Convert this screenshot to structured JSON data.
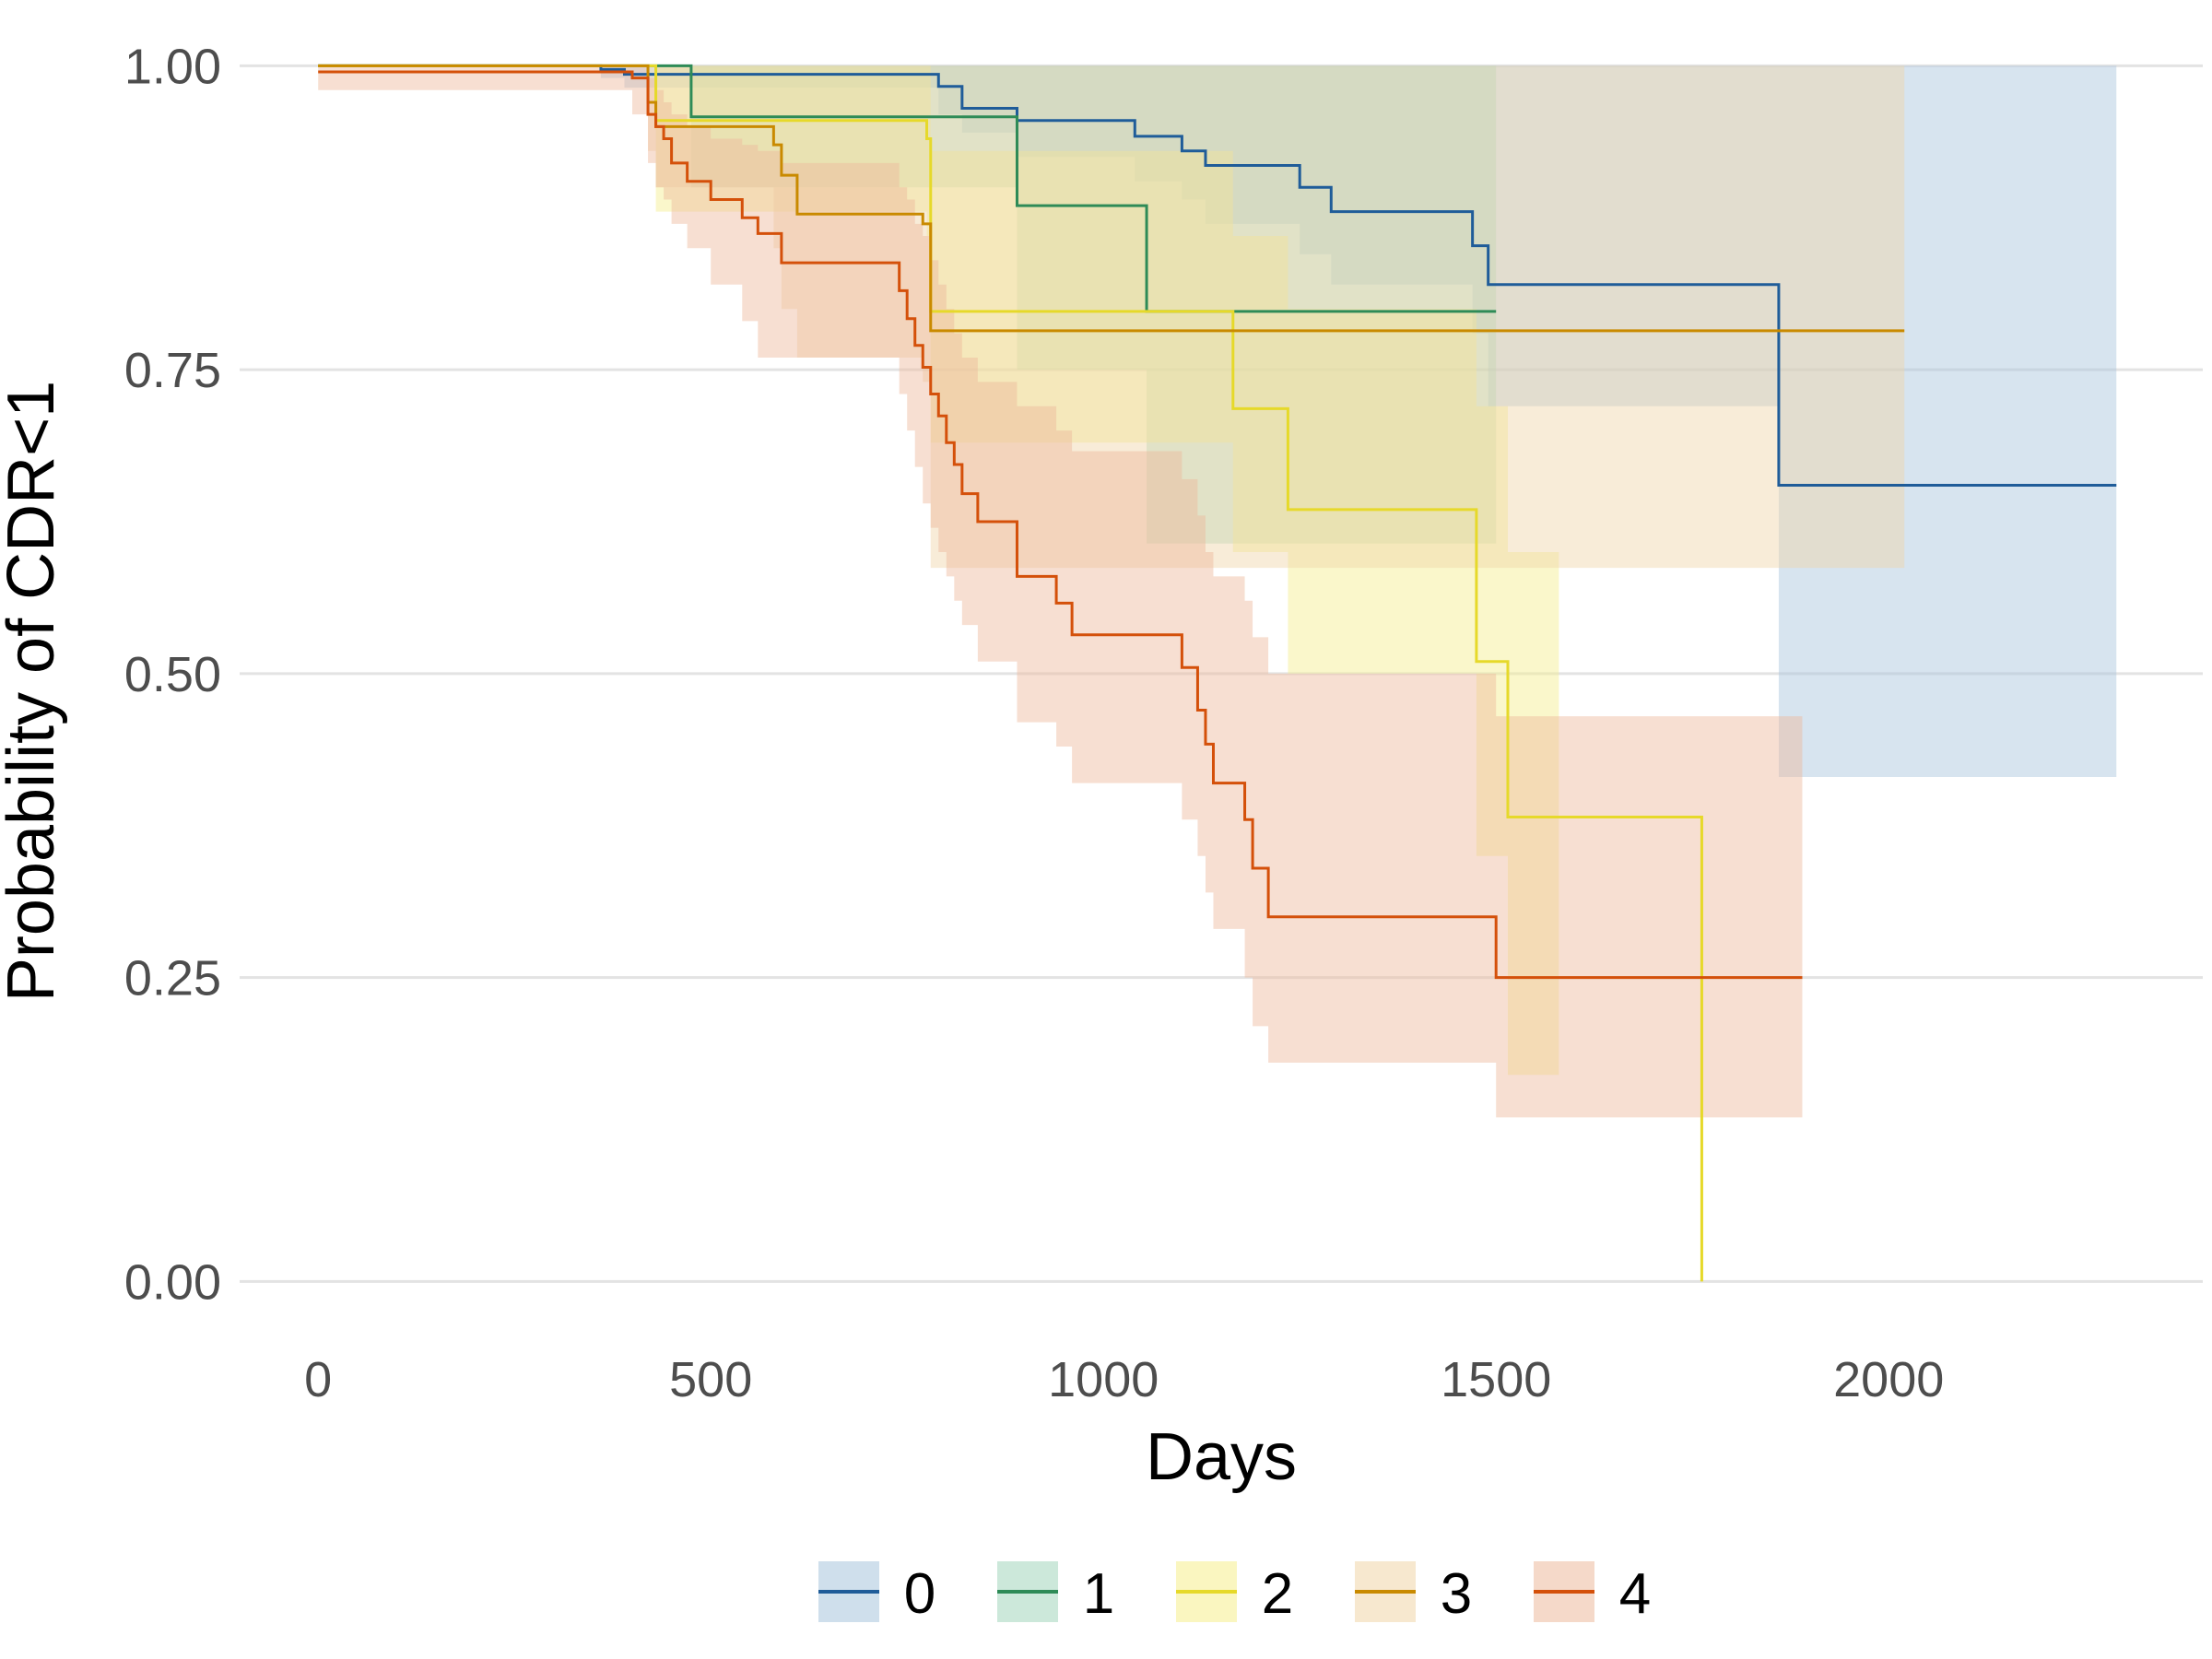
{
  "chart_data": {
    "type": "line",
    "subtype": "kaplan-meier survival curves with confidence bands",
    "title": "",
    "xlabel": "Days",
    "ylabel": "Probability of CDR<1",
    "xlim": [
      -100,
      2400
    ],
    "ylim": [
      -0.03,
      1.02
    ],
    "x_ticks": [
      0,
      500,
      1000,
      1500,
      2000
    ],
    "x_tick_labels": [
      "0",
      "500",
      "1000",
      "1500",
      "2000"
    ],
    "y_ticks": [
      0,
      0.25,
      0.5,
      0.75,
      1
    ],
    "y_tick_labels": [
      "0.00",
      "0.25",
      "0.50",
      "0.75",
      "1.00"
    ],
    "grid": "horizontal major",
    "legend_position": "bottom",
    "series": [
      {
        "name": "0",
        "color": "#1F5C99",
        "band_color": "#A7C4DC",
        "steps": [
          [
            0,
            1.0
          ],
          [
            360,
            0.997
          ],
          [
            390,
            0.993
          ],
          [
            790,
            0.983
          ],
          [
            820,
            0.965
          ],
          [
            890,
            0.955
          ],
          [
            1040,
            0.942
          ],
          [
            1100,
            0.93
          ],
          [
            1130,
            0.918
          ],
          [
            1250,
            0.9
          ],
          [
            1290,
            0.88
          ],
          [
            1470,
            0.852
          ],
          [
            1490,
            0.82
          ],
          [
            1860,
            0.655
          ],
          [
            2290,
            0.655
          ]
        ],
        "lower": [
          [
            0,
            1.0
          ],
          [
            360,
            0.99
          ],
          [
            390,
            0.982
          ],
          [
            790,
            0.96
          ],
          [
            820,
            0.945
          ],
          [
            890,
            0.925
          ],
          [
            1040,
            0.905
          ],
          [
            1100,
            0.89
          ],
          [
            1130,
            0.87
          ],
          [
            1250,
            0.845
          ],
          [
            1290,
            0.82
          ],
          [
            1470,
            0.78
          ],
          [
            1490,
            0.72
          ],
          [
            1860,
            0.415
          ],
          [
            2290,
            0.415
          ]
        ],
        "upper": [
          [
            0,
            1.0
          ],
          [
            1500,
            1.0
          ],
          [
            2290,
            1.0
          ]
        ]
      },
      {
        "name": "1",
        "color": "#2E8B57",
        "band_color": "#A3D6BC",
        "steps": [
          [
            0,
            1.0
          ],
          [
            470,
            1.0
          ],
          [
            475,
            0.958
          ],
          [
            885,
            0.958
          ],
          [
            890,
            0.885
          ],
          [
            1050,
            0.885
          ],
          [
            1055,
            0.798
          ],
          [
            1500,
            0.798
          ]
        ],
        "lower": [
          [
            0,
            1.0
          ],
          [
            470,
            1.0
          ],
          [
            475,
            0.9
          ],
          [
            885,
            0.9
          ],
          [
            890,
            0.75
          ],
          [
            1050,
            0.75
          ],
          [
            1055,
            0.607
          ],
          [
            1500,
            0.607
          ]
        ],
        "upper": [
          [
            0,
            1.0
          ],
          [
            1500,
            1.0
          ]
        ]
      },
      {
        "name": "2",
        "color": "#E6D92A",
        "band_color": "#F5EE8C",
        "steps": [
          [
            0,
            1.0
          ],
          [
            420,
            1.0
          ],
          [
            430,
            0.955
          ],
          [
            770,
            0.955
          ],
          [
            775,
            0.94
          ],
          [
            780,
            0.798
          ],
          [
            1160,
            0.798
          ],
          [
            1165,
            0.718
          ],
          [
            1230,
            0.718
          ],
          [
            1235,
            0.635
          ],
          [
            1470,
            0.635
          ],
          [
            1475,
            0.51
          ],
          [
            1510,
            0.51
          ],
          [
            1515,
            0.382
          ],
          [
            1760,
            0.382
          ],
          [
            1762,
            0.0
          ]
        ],
        "lower": [
          [
            0,
            1.0
          ],
          [
            420,
            1.0
          ],
          [
            430,
            0.88
          ],
          [
            770,
            0.88
          ],
          [
            775,
            0.86
          ],
          [
            780,
            0.69
          ],
          [
            1160,
            0.69
          ],
          [
            1165,
            0.6
          ],
          [
            1230,
            0.6
          ],
          [
            1235,
            0.5
          ],
          [
            1470,
            0.5
          ],
          [
            1475,
            0.35
          ],
          [
            1510,
            0.35
          ],
          [
            1515,
            0.17
          ],
          [
            1580,
            0.17
          ]
        ],
        "upper": [
          [
            0,
            1.0
          ],
          [
            420,
            1.0
          ],
          [
            430,
            1.0
          ],
          [
            770,
            1.0
          ],
          [
            780,
            0.93
          ],
          [
            1160,
            0.93
          ],
          [
            1165,
            0.86
          ],
          [
            1230,
            0.86
          ],
          [
            1235,
            0.8
          ],
          [
            1470,
            0.8
          ],
          [
            1475,
            0.72
          ],
          [
            1510,
            0.72
          ],
          [
            1515,
            0.6
          ],
          [
            1580,
            0.6
          ]
        ]
      },
      {
        "name": "3",
        "color": "#C98A00",
        "band_color": "#F0D5A8",
        "steps": [
          [
            0,
            1.0
          ],
          [
            415,
            1.0
          ],
          [
            420,
            0.97
          ],
          [
            430,
            0.95
          ],
          [
            580,
            0.935
          ],
          [
            590,
            0.91
          ],
          [
            610,
            0.878
          ],
          [
            760,
            0.878
          ],
          [
            770,
            0.87
          ],
          [
            780,
            0.782
          ],
          [
            2020,
            0.782
          ]
        ],
        "lower": [
          [
            0,
            1.0
          ],
          [
            415,
            1.0
          ],
          [
            420,
            0.93
          ],
          [
            430,
            0.9
          ],
          [
            580,
            0.85
          ],
          [
            590,
            0.8
          ],
          [
            610,
            0.76
          ],
          [
            760,
            0.76
          ],
          [
            770,
            0.74
          ],
          [
            780,
            0.587
          ],
          [
            2020,
            0.587
          ]
        ],
        "upper": [
          [
            0,
            1.0
          ],
          [
            2020,
            1.0
          ]
        ]
      },
      {
        "name": "4",
        "color": "#D4500A",
        "band_color": "#EDB99C",
        "steps": [
          [
            0,
            0.995
          ],
          [
            350,
            0.995
          ],
          [
            400,
            0.99
          ],
          [
            420,
            0.96
          ],
          [
            430,
            0.95
          ],
          [
            440,
            0.94
          ],
          [
            450,
            0.92
          ],
          [
            470,
            0.905
          ],
          [
            500,
            0.89
          ],
          [
            540,
            0.875
          ],
          [
            560,
            0.862
          ],
          [
            590,
            0.838
          ],
          [
            720,
            0.838
          ],
          [
            740,
            0.815
          ],
          [
            750,
            0.792
          ],
          [
            760,
            0.77
          ],
          [
            770,
            0.752
          ],
          [
            780,
            0.73
          ],
          [
            790,
            0.712
          ],
          [
            800,
            0.69
          ],
          [
            810,
            0.672
          ],
          [
            820,
            0.648
          ],
          [
            840,
            0.625
          ],
          [
            890,
            0.58
          ],
          [
            940,
            0.558
          ],
          [
            960,
            0.532
          ],
          [
            1090,
            0.532
          ],
          [
            1100,
            0.505
          ],
          [
            1120,
            0.47
          ],
          [
            1130,
            0.442
          ],
          [
            1140,
            0.41
          ],
          [
            1180,
            0.38
          ],
          [
            1190,
            0.34
          ],
          [
            1210,
            0.3
          ],
          [
            1490,
            0.3
          ],
          [
            1500,
            0.25
          ],
          [
            1890,
            0.25
          ]
        ],
        "lower": [
          [
            0,
            0.98
          ],
          [
            350,
            0.98
          ],
          [
            400,
            0.96
          ],
          [
            420,
            0.92
          ],
          [
            430,
            0.9
          ],
          [
            440,
            0.89
          ],
          [
            450,
            0.87
          ],
          [
            470,
            0.85
          ],
          [
            500,
            0.82
          ],
          [
            540,
            0.79
          ],
          [
            560,
            0.76
          ],
          [
            590,
            0.76
          ],
          [
            720,
            0.76
          ],
          [
            740,
            0.73
          ],
          [
            750,
            0.7
          ],
          [
            760,
            0.67
          ],
          [
            770,
            0.64
          ],
          [
            780,
            0.62
          ],
          [
            790,
            0.6
          ],
          [
            800,
            0.58
          ],
          [
            810,
            0.56
          ],
          [
            820,
            0.54
          ],
          [
            840,
            0.51
          ],
          [
            890,
            0.46
          ],
          [
            940,
            0.44
          ],
          [
            960,
            0.41
          ],
          [
            1090,
            0.41
          ],
          [
            1100,
            0.38
          ],
          [
            1120,
            0.35
          ],
          [
            1130,
            0.32
          ],
          [
            1140,
            0.29
          ],
          [
            1180,
            0.25
          ],
          [
            1190,
            0.21
          ],
          [
            1210,
            0.18
          ],
          [
            1490,
            0.18
          ],
          [
            1500,
            0.135
          ],
          [
            1890,
            0.135
          ]
        ],
        "upper": [
          [
            0,
            1.0
          ],
          [
            400,
            1.0
          ],
          [
            420,
            0.99
          ],
          [
            430,
            0.98
          ],
          [
            440,
            0.97
          ],
          [
            450,
            0.96
          ],
          [
            470,
            0.95
          ],
          [
            500,
            0.94
          ],
          [
            540,
            0.935
          ],
          [
            560,
            0.93
          ],
          [
            590,
            0.92
          ],
          [
            720,
            0.92
          ],
          [
            740,
            0.9
          ],
          [
            750,
            0.89
          ],
          [
            760,
            0.87
          ],
          [
            770,
            0.86
          ],
          [
            780,
            0.84
          ],
          [
            790,
            0.82
          ],
          [
            800,
            0.8
          ],
          [
            810,
            0.78
          ],
          [
            820,
            0.76
          ],
          [
            840,
            0.74
          ],
          [
            890,
            0.72
          ],
          [
            940,
            0.7
          ],
          [
            960,
            0.683
          ],
          [
            1090,
            0.683
          ],
          [
            1100,
            0.66
          ],
          [
            1120,
            0.63
          ],
          [
            1130,
            0.6
          ],
          [
            1140,
            0.58
          ],
          [
            1180,
            0.56
          ],
          [
            1190,
            0.53
          ],
          [
            1210,
            0.5
          ],
          [
            1490,
            0.5
          ],
          [
            1500,
            0.465
          ],
          [
            1890,
            0.465
          ]
        ]
      }
    ]
  }
}
